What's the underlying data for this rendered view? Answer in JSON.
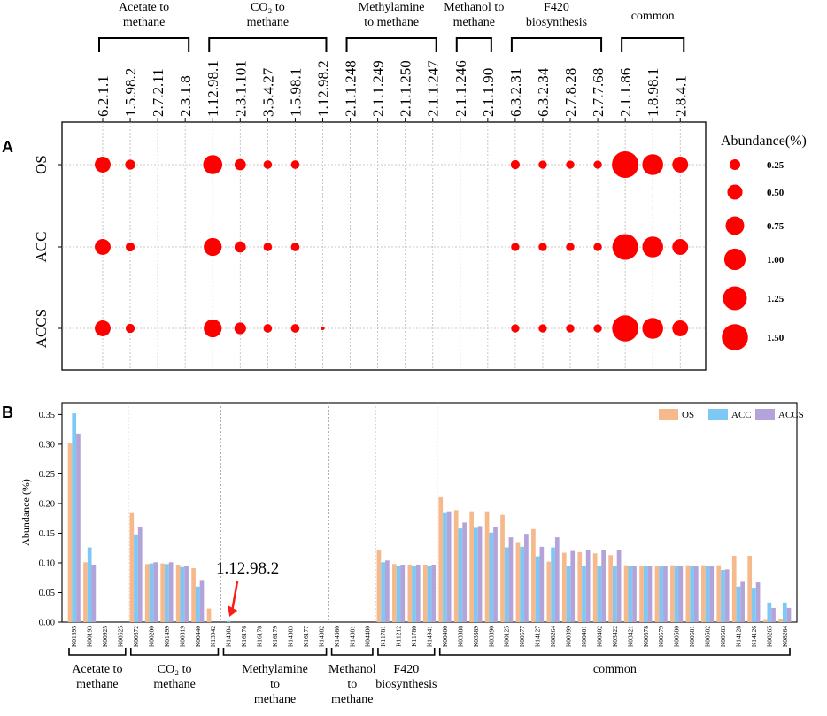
{
  "panel_labels": {
    "a": "A",
    "b": "B"
  },
  "chart_data": [
    {
      "type": "bubble",
      "panel": "A",
      "title": "",
      "groups": [
        {
          "label": [
            "Acetate to",
            "methane"
          ],
          "ecs": [
            "6.2.1.1",
            "1.5.98.2",
            "2.7.2.11",
            "2.3.1.8"
          ]
        },
        {
          "label": [
            "CO₂ to",
            "methane"
          ],
          "ecs": [
            "1.12.98.1",
            "2.3.1.101",
            "3.5.4.27",
            "1.5.98.1",
            "1.12.98.2"
          ]
        },
        {
          "label": [
            "Methylamine",
            "to methane"
          ],
          "ecs": [
            "2.1.1.248",
            "2.1.1.249",
            "2.1.1.250",
            "2.1.1.247"
          ]
        },
        {
          "label": [
            "Methanol to",
            "methane"
          ],
          "ecs": [
            "2.1.1.246",
            "2.1.1.90"
          ]
        },
        {
          "label": [
            "F420",
            "biosynthesis"
          ],
          "ecs": [
            "6.3.2.31",
            "6.3.2.34",
            "2.7.8.28",
            "2.7.7.68"
          ]
        },
        {
          "label": [
            "common"
          ],
          "ecs": [
            "2.1.1.86",
            "1.8.98.1",
            "2.8.4.1"
          ]
        }
      ],
      "rows": [
        "OS",
        "ACC",
        "ACCS"
      ],
      "values": {
        "OS": [
          0.55,
          0.22,
          0,
          0,
          0.8,
          0.28,
          0.16,
          0.16,
          0,
          0,
          0,
          0,
          0,
          0,
          0,
          0.18,
          0.15,
          0.15,
          0.15,
          1.55,
          0.95,
          0.55
        ],
        "ACC": [
          0.55,
          0.18,
          0,
          0,
          0.7,
          0.28,
          0.16,
          0.16,
          0,
          0,
          0,
          0,
          0,
          0,
          0,
          0.15,
          0.15,
          0.15,
          0.15,
          1.45,
          0.95,
          0.55
        ],
        "ACCS": [
          0.55,
          0.18,
          0,
          0,
          0.7,
          0.3,
          0.16,
          0.16,
          0.03,
          0,
          0,
          0,
          0,
          0,
          0,
          0.15,
          0.15,
          0.15,
          0.15,
          1.5,
          0.95,
          0.55
        ]
      },
      "legend": {
        "title": "Abundance(%)",
        "labels": [
          "0.25",
          "0.50",
          "0.75",
          "1.00",
          "1.25",
          "1.50"
        ],
        "values": [
          0.25,
          0.5,
          0.75,
          1.0,
          1.25,
          1.5
        ]
      },
      "color": "#ff0000"
    },
    {
      "type": "bar",
      "panel": "B",
      "ylabel": "Abundance (%)",
      "ylim": [
        0,
        0.37
      ],
      "yticks": [
        "0.00",
        "0.05",
        "0.10",
        "0.15",
        "0.20",
        "0.25",
        "0.30",
        "0.35"
      ],
      "ytick_values": [
        0,
        0.05,
        0.1,
        0.15,
        0.2,
        0.25,
        0.3,
        0.35
      ],
      "categories": [
        "K01895",
        "K00193",
        "K00925",
        "K00625",
        "K00672",
        "K00200",
        "K01499",
        "K00319",
        "K00440",
        "K13942",
        "K14084",
        "K16176",
        "K16178",
        "K16179",
        "K14083",
        "K16177",
        "K14082",
        "K14080",
        "K14081",
        "K04480",
        "K11781",
        "K11212",
        "K11780",
        "K14941",
        "K00400",
        "K03388",
        "K03389",
        "K03390",
        "K00125",
        "K00577",
        "K14127",
        "K08264",
        "K00399",
        "K00401",
        "K00402",
        "K03422",
        "K03421",
        "K00578",
        "K00579",
        "K00580",
        "K00581",
        "K00582",
        "K00583",
        "K14128",
        "K14126",
        "K08265",
        "K08264"
      ],
      "series": [
        {
          "name": "OS",
          "color": "#f5b98c",
          "values": [
            0.302,
            0.101,
            0,
            0,
            0.184,
            0.098,
            0.099,
            0.097,
            0.091,
            0.023,
            0,
            0,
            0,
            0,
            0,
            0,
            0,
            0,
            0,
            0,
            0.121,
            0.098,
            0.097,
            0.097,
            0.212,
            0.189,
            0.187,
            0.187,
            0.181,
            0.135,
            0.157,
            0.102,
            0.117,
            0.118,
            0.116,
            0.113,
            0.096,
            0.095,
            0.095,
            0.096,
            0.096,
            0.096,
            0.096,
            0.112,
            0.112,
            0.005,
            0.006
          ]
        },
        {
          "name": "ACC",
          "color": "#7ec8f5",
          "values": [
            0.352,
            0.126,
            0,
            0,
            0.148,
            0.099,
            0.098,
            0.093,
            0.06,
            0,
            0.002,
            0,
            0,
            0,
            0,
            0,
            0,
            0,
            0,
            0,
            0.101,
            0.095,
            0.095,
            0.095,
            0.184,
            0.158,
            0.159,
            0.151,
            0.126,
            0.127,
            0.111,
            0.126,
            0.094,
            0.094,
            0.094,
            0.094,
            0.094,
            0.094,
            0.094,
            0.094,
            0.094,
            0.094,
            0.088,
            0.06,
            0.058,
            0.033,
            0.033
          ]
        },
        {
          "name": "ACCS",
          "color": "#b3a3d9",
          "values": [
            0.318,
            0.097,
            0,
            0,
            0.16,
            0.101,
            0.101,
            0.095,
            0.071,
            0,
            0,
            0,
            0,
            0,
            0,
            0,
            0,
            0,
            0,
            0,
            0.104,
            0.097,
            0.097,
            0.097,
            0.187,
            0.168,
            0.162,
            0.161,
            0.143,
            0.149,
            0.127,
            0.143,
            0.12,
            0.121,
            0.121,
            0.121,
            0.095,
            0.095,
            0.095,
            0.095,
            0.095,
            0.095,
            0.089,
            0.068,
            0.067,
            0.024,
            0.024
          ]
        }
      ],
      "annotation": {
        "text": "1.12.98.2",
        "target_category": "K14084"
      },
      "groups": [
        {
          "label": [
            "Acetate to",
            "methane"
          ],
          "count": 4
        },
        {
          "label": [
            "CO₂ to",
            "methane"
          ],
          "count": 6
        },
        {
          "label": [
            "Methylamine",
            "to",
            "methane"
          ],
          "count": 7
        },
        {
          "label": [
            "Methanol",
            "to",
            "methane"
          ],
          "count": 3
        },
        {
          "label": [
            "F420",
            "biosynthesis"
          ],
          "count": 4
        },
        {
          "label": [
            "common"
          ],
          "count": 23
        }
      ]
    }
  ]
}
